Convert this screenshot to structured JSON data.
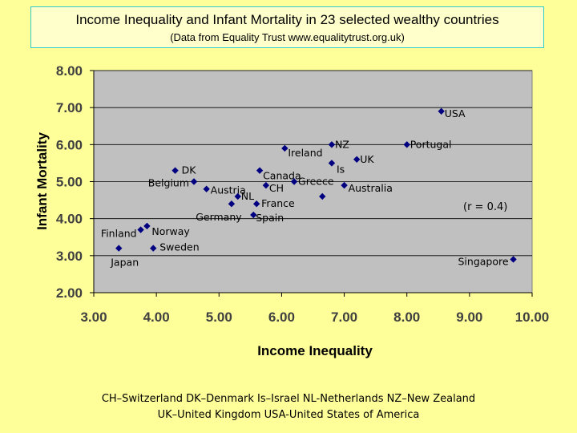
{
  "header": {
    "title": "Income Inequality and Infant Mortality in 23 selected wealthy countries",
    "subtitle": "(Data from Equality Trust  www.equalitytrust.org.uk)"
  },
  "chart_data": {
    "type": "scatter",
    "xlabel": "Income Inequality",
    "ylabel": "Infant Mortality",
    "xlim": [
      3,
      10
    ],
    "ylim": [
      2,
      8
    ],
    "xticks": [
      "3.00",
      "4.00",
      "5.00",
      "6.00",
      "7.00",
      "8.00",
      "9.00",
      "10.00"
    ],
    "yticks": [
      "2.00",
      "3.00",
      "4.00",
      "5.00",
      "6.00",
      "7.00",
      "8.00"
    ],
    "grid": "horizontal",
    "plot_background": "#c0c0c0",
    "marker_color": "#000080",
    "annotation": "(r = 0.4)",
    "points": [
      {
        "label": "USA",
        "x": 8.55,
        "y": 6.9
      },
      {
        "label": "Portugal",
        "x": 8.0,
        "y": 6.0
      },
      {
        "label": "NZ",
        "x": 6.8,
        "y": 6.0
      },
      {
        "label": "Ireland",
        "x": 6.05,
        "y": 5.9
      },
      {
        "label": "UK",
        "x": 7.2,
        "y": 5.6
      },
      {
        "label": "Is",
        "x": 6.8,
        "y": 5.5
      },
      {
        "label": "DK",
        "x": 4.3,
        "y": 5.3
      },
      {
        "label": "Canada",
        "x": 5.65,
        "y": 5.3
      },
      {
        "label": "Belgium",
        "x": 4.6,
        "y": 5.0
      },
      {
        "label": "Greece",
        "x": 6.2,
        "y": 5.0
      },
      {
        "label": "CH",
        "x": 5.75,
        "y": 4.9
      },
      {
        "label": "Australia",
        "x": 7.0,
        "y": 4.9
      },
      {
        "label": "Austria",
        "x": 4.8,
        "y": 4.8
      },
      {
        "label": "NL",
        "x": 5.3,
        "y": 4.6
      },
      {
        "label": "",
        "x": 6.65,
        "y": 4.6
      },
      {
        "label": "France",
        "x": 5.6,
        "y": 4.4
      },
      {
        "label": "Germany",
        "x": 5.2,
        "y": 4.4
      },
      {
        "label": "Spain",
        "x": 5.55,
        "y": 4.1
      },
      {
        "label": "Norway",
        "x": 3.85,
        "y": 3.8
      },
      {
        "label": "Finland",
        "x": 3.75,
        "y": 3.7
      },
      {
        "label": "Japan",
        "x": 3.4,
        "y": 3.2
      },
      {
        "label": "Sweden",
        "x": 3.95,
        "y": 3.2
      },
      {
        "label": "Singapore",
        "x": 9.7,
        "y": 2.9
      }
    ]
  },
  "footnotes": {
    "line1": "CH–Switzerland     DK–Denmark     Is–Israel     NL-Netherlands    NZ–New Zealand",
    "line2": "UK–United Kingdom     USA-United States of America"
  }
}
